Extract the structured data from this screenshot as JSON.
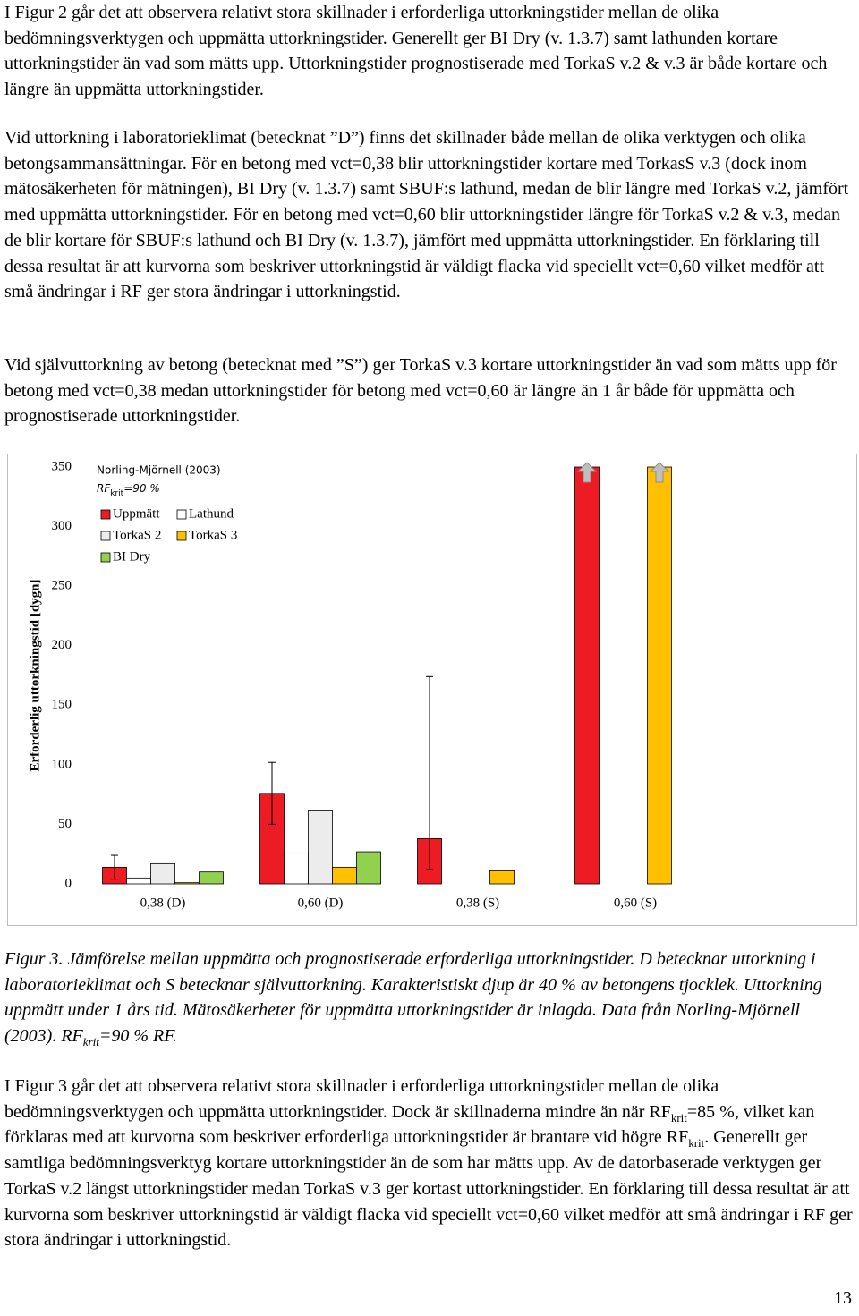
{
  "paragraphs_before": [
    [
      {
        "t": "I Figur 2 går det att observera relativt stora skillnader i erforderliga uttorkningstider mellan de olika bedömningsverktygen och uppmätta uttorkningstider. Generellt ger BI Dry (v. 1.3.7) samt lathunden kortare uttorkningstider än vad som mätts upp. Uttorkningstider prognostiserade med TorkaS v.2 & v.3 är både kortare och längre än uppmätta uttorkningstider."
      }
    ],
    [
      {
        "t": "Vid uttorkning i laboratorieklimat (betecknat ”D”) finns det skillnader både mellan de olika verktygen och olika betongsammansättningar. För en betong med vct=0,38 blir uttorkningstider kortare med TorkasS v.3 (dock inom mätosäkerheten för mätningen), BI Dry (v. 1.3.7) samt SBUF:s lathund, medan de blir längre med TorkaS v.2, jämfört med uppmätta uttorkningstider. För en betong med vct=0,60 blir uttorkningstider längre för TorkaS v.2 & v.3, medan de blir kortare för SBUF:s lathund och BI Dry (v. 1.3.7), jämfört med uppmätta uttorkningstider. En förklaring till dessa resultat är att kurvorna som beskriver uttorkningstid är väldigt flacka vid speciellt vct=0,60 vilket medför att små ändringar i RF ger stora ändringar i uttorkningstid."
      }
    ],
    [
      {
        "t": "Vid självuttorkning av betong (betecknat med ”S”) ger TorkaS v.3 kortare uttorkningstider än vad som mätts upp för betong med vct=0,38 medan uttorkningstider för betong med vct=0,60 är längre än 1 år både för uppmätta och prognostiserade uttorkningstider."
      }
    ]
  ],
  "chart_data": {
    "type": "bar",
    "annotation_source": "Norling-Mjörnell (2003)",
    "annotation_rf": [
      {
        "t": "RF"
      },
      {
        "sub": "krit"
      },
      {
        "t": "=90 %"
      }
    ],
    "y_label": "Erforderlig uttorkningstid [dygn]",
    "categories": [
      "0,38 (D)",
      "0,60 (D)",
      "0,38 (S)",
      "0,60 (S)"
    ],
    "series": [
      {
        "name": "Uppmätt",
        "color": "#ed1c24",
        "values": [
          14,
          76,
          38,
          350
        ],
        "error_low": [
          4,
          50,
          12,
          null
        ],
        "error_high": [
          24,
          102,
          174,
          null
        ]
      },
      {
        "name": "Lathund",
        "color": "#ffffff",
        "values": [
          5,
          26,
          null,
          null
        ]
      },
      {
        "name": "TorkaS 2",
        "color": "#ececec",
        "values": [
          17,
          62,
          null,
          null
        ]
      },
      {
        "name": "TorkaS 3",
        "color": "#ffc000",
        "values": [
          1,
          14,
          11,
          350
        ]
      },
      {
        "name": "BI Dry",
        "color": "#92d050",
        "values": [
          10,
          27,
          null,
          null
        ]
      }
    ],
    "ylim": [
      0,
      350
    ],
    "yticks": [
      0,
      50,
      100,
      150,
      200,
      250,
      300,
      350
    ],
    "grid": false
  },
  "caption": [
    {
      "t": "Figur 3. Jämförelse mellan uppmätta och prognostiserade erforderliga uttorkningstider. D betecknar uttorkning i laboratorieklimat och S betecknar självuttorkning. Karakteristiskt djup är 40 % av betongens tjocklek. Uttorkning uppmätt under 1 års tid. Mätosäkerheter för uppmätta uttorkningstider är inlagda. Data från Norling-Mjörnell (2003). RF"
    },
    {
      "sub": "krit"
    },
    {
      "t": "=90 % RF."
    }
  ],
  "paragraphs_after": [
    [
      {
        "t": "I Figur 3 går det att observera relativt stora skillnader i erforderliga uttorkningstider mellan de olika bedömningsverktygen och uppmätta uttorkningstider. Dock är skillnaderna mindre än när RF"
      },
      {
        "sub": "krit"
      },
      {
        "t": "=85 %, vilket kan förklaras med att kurvorna som beskriver erforderliga uttorkningstider är brantare vid högre RF"
      },
      {
        "sub": "krit"
      },
      {
        "t": ". Generellt ger samtliga bedömningsverktyg kortare uttorkningstider än de som har mätts upp. Av de datorbaserade verktygen ger TorkaS v.2 längst uttorkningstider medan TorkaS v.3 ger kortast uttorkningstider. En förklaring till dessa resultat är att kurvorna som beskriver uttorkningstid är väldigt flacka vid speciellt vct=0,60 vilket medför att små ändringar i RF ger stora ändringar i uttorkningstid."
      }
    ]
  ],
  "page_number": "13"
}
